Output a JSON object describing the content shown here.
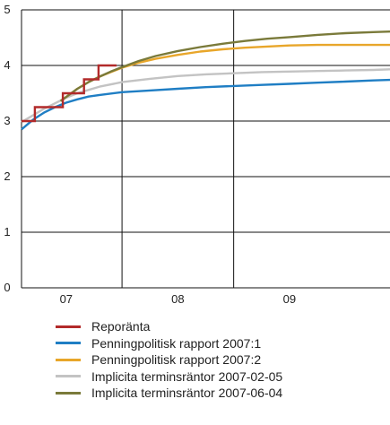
{
  "chart_data": {
    "type": "line",
    "title": "",
    "xlabel": "",
    "ylabel": "",
    "ylim": [
      0,
      5
    ],
    "yticks": [
      0,
      1,
      2,
      3,
      4,
      5
    ],
    "xlim": [
      2006.6,
      2009.9
    ],
    "xgrid_at": [
      2007.5,
      2008.5
    ],
    "xtick_labels": [
      {
        "label": "07",
        "x": 2007.0
      },
      {
        "label": "08",
        "x": 2008.0
      },
      {
        "label": "09",
        "x": 2009.0
      }
    ],
    "grid": "y-major",
    "legend_position": "bottom",
    "series": [
      {
        "name": "Reporänta",
        "color": "#b22a2a",
        "step": true,
        "x": [
          2006.6,
          2006.72,
          2006.72,
          2006.97,
          2006.97,
          2007.16,
          2007.16,
          2007.29,
          2007.29,
          2007.45
        ],
        "y": [
          3.0,
          3.0,
          3.25,
          3.25,
          3.5,
          3.5,
          3.75,
          3.75,
          4.0,
          4.0
        ]
      },
      {
        "name": "Penningpolitisk rapport 2007:1",
        "color": "#1f7ec4",
        "x": [
          2006.6,
          2006.7,
          2006.8,
          2006.9,
          2007.0,
          2007.1,
          2007.2,
          2007.3,
          2007.5,
          2007.75,
          2008.0,
          2008.25,
          2008.5,
          2008.75,
          2009.0,
          2009.25,
          2009.5,
          2009.75,
          2009.9
        ],
        "y": [
          2.85,
          3.02,
          3.15,
          3.25,
          3.33,
          3.39,
          3.44,
          3.47,
          3.52,
          3.55,
          3.58,
          3.61,
          3.63,
          3.65,
          3.67,
          3.69,
          3.71,
          3.73,
          3.74
        ]
      },
      {
        "name": "Penningpolitisk rapport 2007:2",
        "color": "#e8a62a",
        "x": [
          2006.95,
          2007.1,
          2007.2,
          2007.3,
          2007.4,
          2007.5,
          2007.65,
          2007.8,
          2008.0,
          2008.2,
          2008.4,
          2008.6,
          2008.8,
          2009.0,
          2009.25,
          2009.5,
          2009.75,
          2009.9
        ],
        "y": [
          3.36,
          3.58,
          3.7,
          3.8,
          3.88,
          3.96,
          4.05,
          4.12,
          4.19,
          4.25,
          4.29,
          4.32,
          4.34,
          4.36,
          4.37,
          4.37,
          4.37,
          4.37
        ]
      },
      {
        "name": "Implicita terminsräntor 2007-02-05",
        "color": "#c3c3c3",
        "x": [
          2006.6,
          2006.7,
          2006.8,
          2006.9,
          2007.0,
          2007.1,
          2007.2,
          2007.3,
          2007.5,
          2007.75,
          2008.0,
          2008.25,
          2008.5,
          2008.75,
          2009.0,
          2009.25,
          2009.5,
          2009.75,
          2009.9
        ],
        "y": [
          2.98,
          3.1,
          3.22,
          3.32,
          3.42,
          3.5,
          3.56,
          3.62,
          3.7,
          3.76,
          3.81,
          3.84,
          3.86,
          3.88,
          3.89,
          3.9,
          3.91,
          3.92,
          3.93
        ]
      },
      {
        "name": "Implicita terminsräntor 2007-06-04",
        "color": "#7a7a3a",
        "x": [
          2006.95,
          2007.1,
          2007.2,
          2007.3,
          2007.4,
          2007.5,
          2007.65,
          2007.8,
          2008.0,
          2008.2,
          2008.4,
          2008.6,
          2008.8,
          2009.0,
          2009.25,
          2009.5,
          2009.75,
          2009.9
        ],
        "y": [
          3.36,
          3.58,
          3.7,
          3.8,
          3.89,
          3.97,
          4.08,
          4.17,
          4.26,
          4.33,
          4.39,
          4.44,
          4.48,
          4.51,
          4.55,
          4.58,
          4.6,
          4.61
        ]
      }
    ]
  }
}
